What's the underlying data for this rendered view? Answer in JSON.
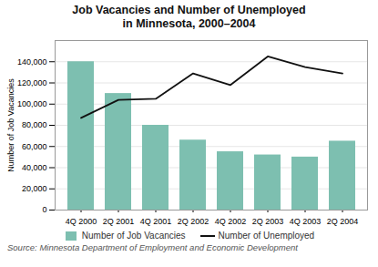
{
  "chart_data": {
    "type": "bar",
    "title": "Job Vacancies and Number of Unemployed\nin Minnesota, 2000–2004",
    "ylabel": "Number of Job Vacancies",
    "source": "Source: Minnesota Department of Employment and Economic Development",
    "categories": [
      "4Q 2000",
      "2Q 2001",
      "4Q 2001",
      "2Q 2002",
      "4Q 2002",
      "2Q 2003",
      "4Q 2003",
      "2Q 2004"
    ],
    "series": [
      {
        "name": "Number of Job Vacancies",
        "type": "bar",
        "color": "#7dbfb0",
        "values": [
          140000,
          110000,
          80000,
          66000,
          55000,
          52000,
          50000,
          65000
        ]
      },
      {
        "name": "Number of Unemployed",
        "type": "line",
        "color": "#111111",
        "values": [
          87000,
          104000,
          105000,
          129000,
          118000,
          145000,
          135000,
          129000
        ]
      }
    ],
    "ylim": [
      0,
      160000
    ],
    "yticks": [
      0,
      {
        "value": 20000,
        "label": "20,000"
      },
      {
        "value": 40000,
        "label": "40,000"
      },
      {
        "value": 60000,
        "label": "60,000"
      },
      {
        "value": 80000,
        "label": "80,000"
      },
      {
        "value": 100000,
        "label": "100,000"
      },
      {
        "value": 120000,
        "label": "120,000"
      },
      {
        "value": 140000,
        "label": "140,000"
      }
    ],
    "grid": true,
    "legend": "bottom"
  }
}
